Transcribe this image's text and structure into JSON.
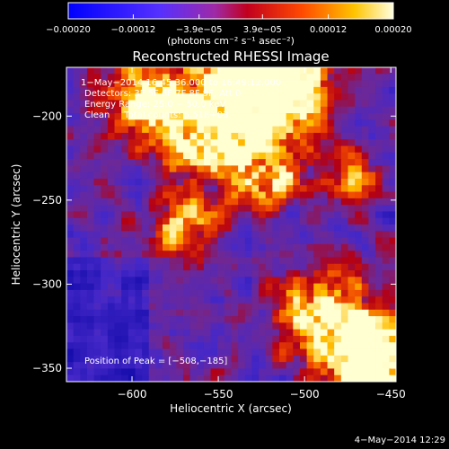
{
  "chart_data": {
    "type": "heatmap",
    "title": "Reconstructed RHESSI Image",
    "xlabel": "Heliocentric X (arcsec)",
    "ylabel": "Heliocentric Y (arcsec)",
    "xlim": [
      -638,
      -447
    ],
    "ylim": [
      -358,
      -171
    ],
    "x_ticks": [
      {
        "value": -600,
        "label": "−600"
      },
      {
        "value": -550,
        "label": "−550"
      },
      {
        "value": -500,
        "label": "−500"
      },
      {
        "value": -450,
        "label": "−450"
      }
    ],
    "y_ticks": [
      {
        "value": -200,
        "label": "−200"
      },
      {
        "value": -250,
        "label": "−250"
      },
      {
        "value": -300,
        "label": "−300"
      },
      {
        "value": -350,
        "label": "−350"
      }
    ],
    "colorbar": {
      "min": -0.0002,
      "max": 0.0002,
      "ticks": [
        {
          "value": -0.0002,
          "label": "−0.00020"
        },
        {
          "value": -0.00012,
          "label": "−0.00012"
        },
        {
          "value": -3.9e-05,
          "label": "−3.9e−05"
        },
        {
          "value": 3.9e-05,
          "label": "3.9e−05"
        },
        {
          "value": 0.00012,
          "label": "0.00012"
        },
        {
          "value": 0.0002,
          "label": "0.00020"
        }
      ],
      "unit_label": "(photons cm⁻² s⁻¹ asec⁻²)"
    },
    "annotations": [
      "1−May−2014 16:45:36.000 to 16:49:12.000",
      "Detectors: 3F 5F 6F 7F 8F 9F, Att 0",
      "Energy Range: 25.0 − 50.0 keV",
      "Clean     Total counts: 5.51E+03"
    ],
    "peak_label": "Position of Peak = [−508,−185]",
    "grid": false
  },
  "footer": {
    "timestamp": "4−May−2014 12:29"
  }
}
